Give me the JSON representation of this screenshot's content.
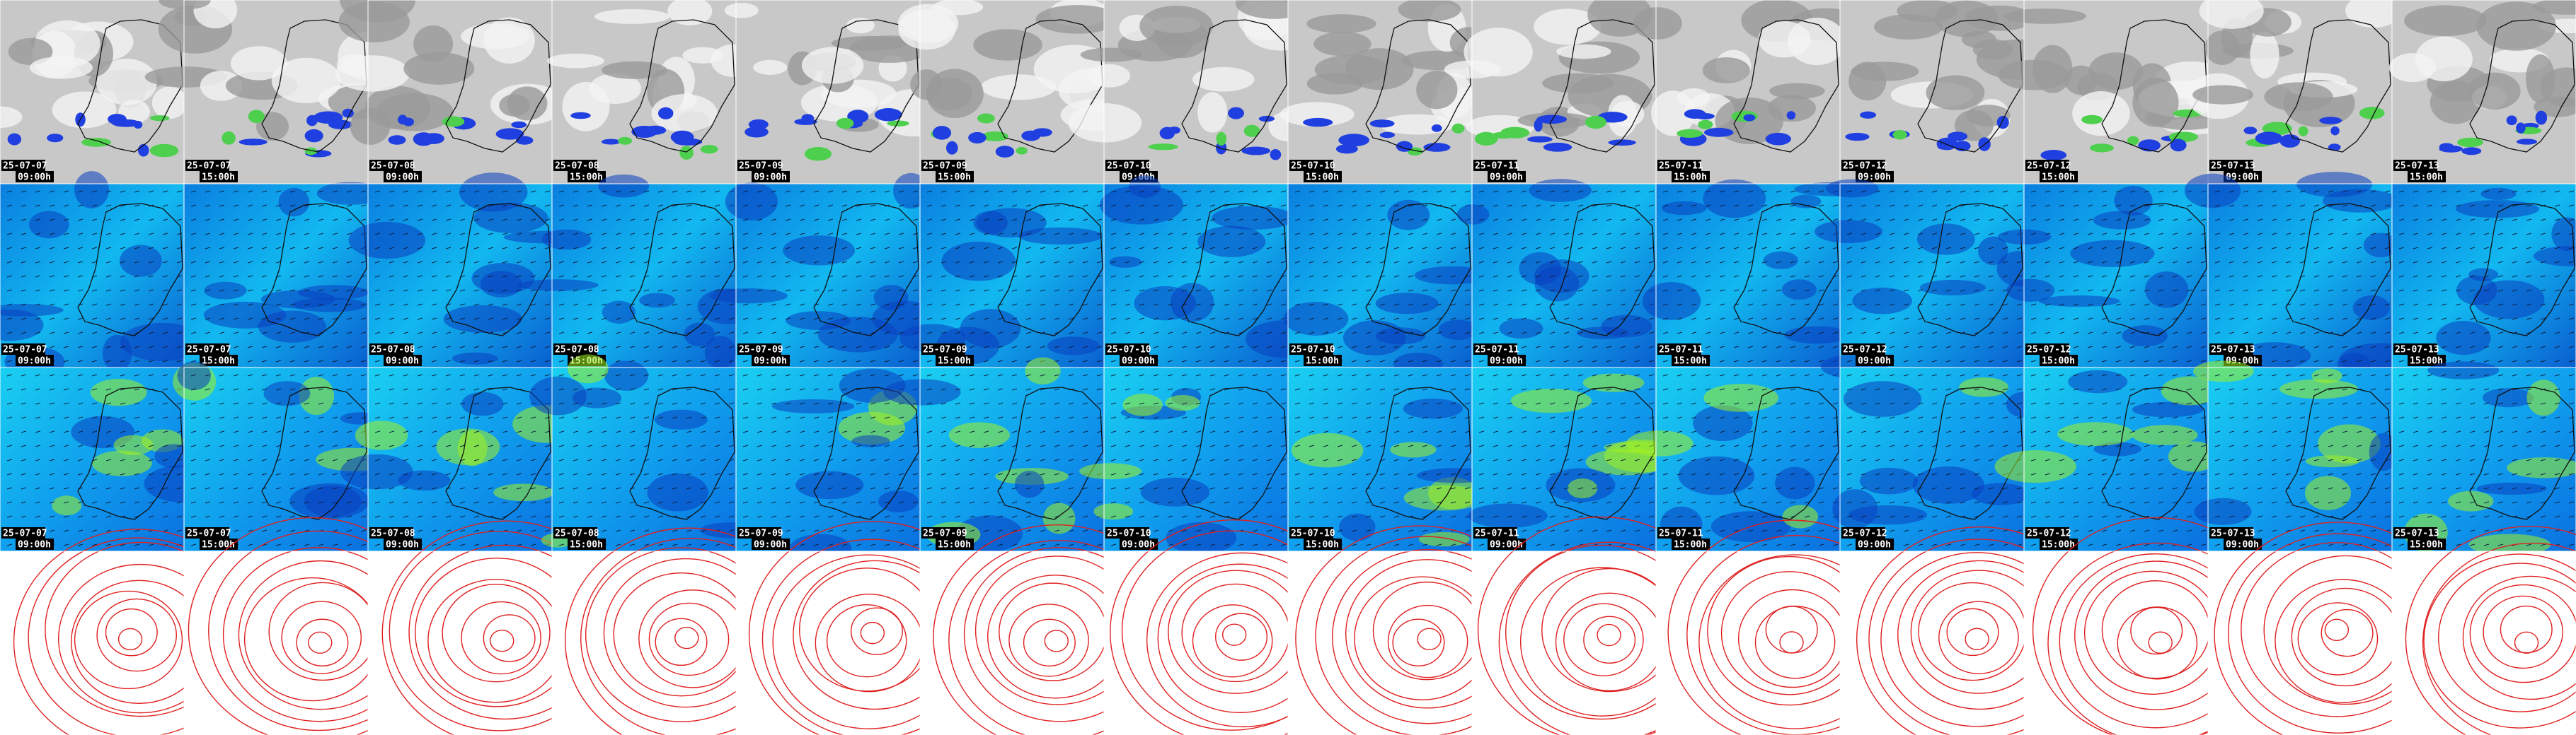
{
  "panels": [
    {
      "date": "25-07-07",
      "time": "09:00h"
    },
    {
      "date": "25-07-07",
      "time": "15:00h"
    },
    {
      "date": "25-07-08",
      "time": "09:00h"
    },
    {
      "date": "25-07-08",
      "time": "15:00h"
    },
    {
      "date": "25-07-09",
      "time": "09:00h"
    },
    {
      "date": "25-07-09",
      "time": "15:00h"
    },
    {
      "date": "25-07-10",
      "time": "09:00h"
    },
    {
      "date": "25-07-10",
      "time": "15:00h"
    },
    {
      "date": "25-07-11",
      "time": "09:00h"
    },
    {
      "date": "25-07-11",
      "time": "15:00h"
    },
    {
      "date": "25-07-12",
      "time": "09:00h"
    },
    {
      "date": "25-07-12",
      "time": "15:00h"
    },
    {
      "date": "25-07-13",
      "time": "09:00h"
    },
    {
      "date": "25-07-13",
      "time": "15:00h"
    }
  ]
}
